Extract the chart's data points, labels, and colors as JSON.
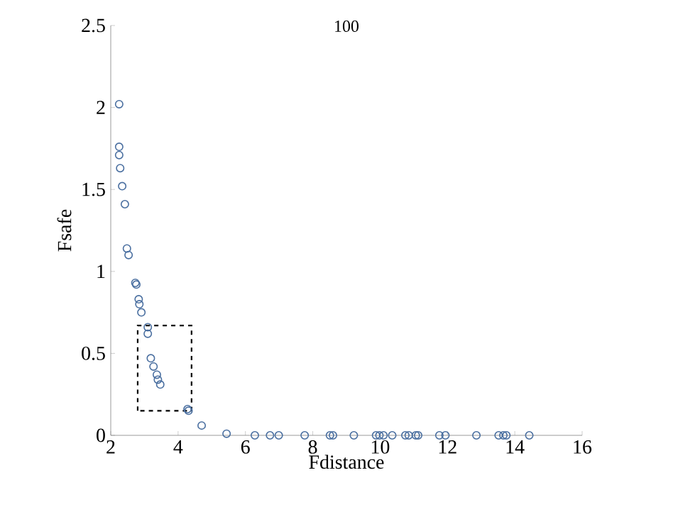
{
  "chart_data": {
    "type": "scatter",
    "title": "100",
    "xlabel": "Fdistance",
    "ylabel": "Fsafe",
    "marker": "circle",
    "xlim": [
      2,
      16
    ],
    "ylim": [
      0,
      2.5
    ],
    "xticks": [
      2,
      4,
      6,
      8,
      10,
      12,
      14,
      16
    ],
    "yticks": [
      0,
      0.5,
      1,
      1.5,
      2,
      2.5
    ],
    "series": [
      {
        "color": "#4a6fa0",
        "x": [
          2.25,
          2.25,
          2.25,
          2.28,
          2.34,
          2.42,
          2.48,
          2.53,
          2.73,
          2.76,
          2.83,
          2.85,
          2.91,
          3.1,
          3.1,
          3.19,
          3.27,
          3.37,
          3.4,
          3.47,
          4.28,
          4.31,
          4.7,
          5.44,
          6.28,
          6.73,
          6.99,
          7.76,
          8.51,
          8.6,
          9.22,
          9.88,
          9.98,
          10.1,
          10.36,
          10.75,
          10.85,
          11.06,
          11.13,
          11.76,
          11.94,
          12.86,
          13.52,
          13.66,
          13.75,
          14.43
        ],
        "values": [
          2.02,
          1.76,
          1.71,
          1.63,
          1.52,
          1.41,
          1.14,
          1.1,
          0.93,
          0.92,
          0.83,
          0.8,
          0.75,
          0.66,
          0.62,
          0.47,
          0.42,
          0.37,
          0.34,
          0.31,
          0.16,
          0.15,
          0.06,
          0.01,
          0,
          0,
          0,
          0,
          0,
          0,
          0,
          0,
          0,
          0,
          0,
          0,
          0,
          0,
          0,
          0,
          0,
          0,
          0,
          0,
          0,
          0
        ]
      }
    ]
  }
}
